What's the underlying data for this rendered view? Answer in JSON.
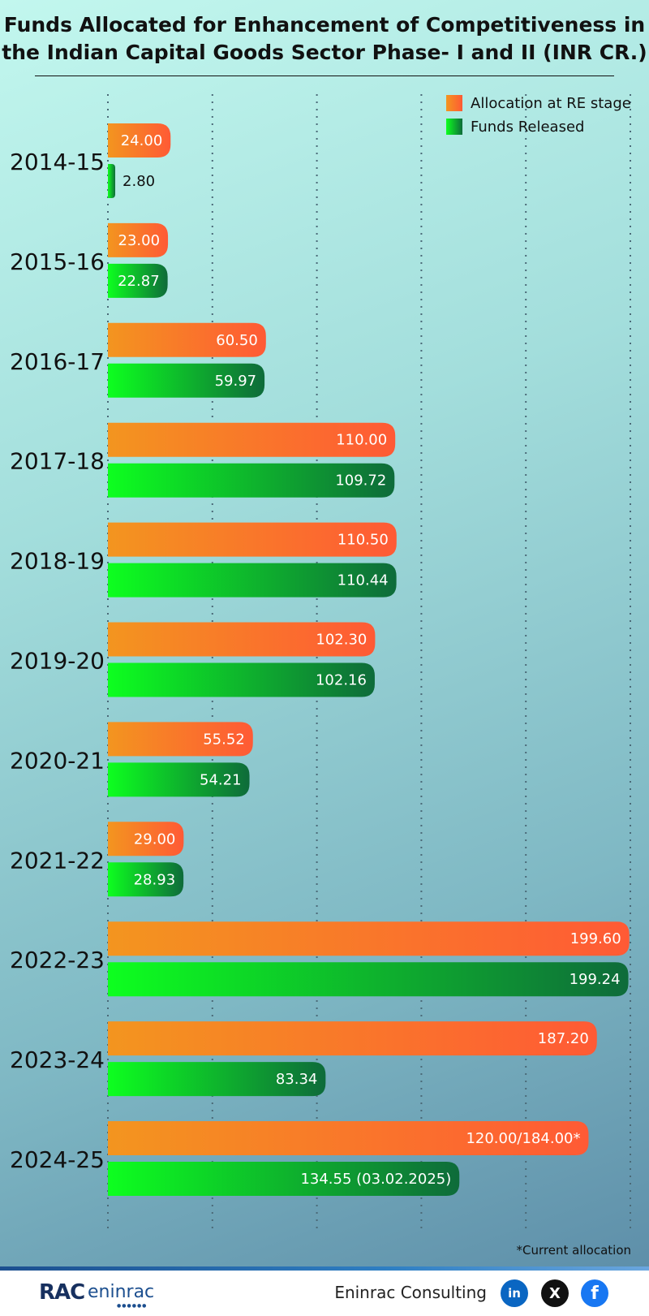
{
  "title": {
    "line1": "Funds Allocated for Enhancement of  Competitiveness in",
    "line2": "the Indian Capital Goods Sector Phase- I and II (INR CR.)"
  },
  "chart_data": {
    "type": "bar",
    "orientation": "horizontal",
    "title": "Funds Allocated for Enhancement of  Competitiveness in the Indian Capital Goods Sector Phase- I and II (INR CR.)",
    "categories": [
      "2014-15",
      "2015-16",
      "2016-17",
      "2017-18",
      "2018-19",
      "2019-20",
      "2020-21",
      "2021-22",
      "2022-23",
      "2023-24",
      "2024-25"
    ],
    "series": [
      {
        "name": "Allocation at RE stage",
        "values": [
          24.0,
          23.0,
          60.5,
          110.0,
          110.5,
          102.3,
          55.52,
          29.0,
          199.6,
          187.2,
          184.0
        ],
        "labels": [
          "24.00",
          "23.00",
          "60.50",
          "110.00",
          "110.50",
          "102.30",
          "55.52",
          "29.00",
          "199.60",
          "187.20",
          "120.00/184.00*"
        ],
        "color_start": "#f3951f",
        "color_end": "#ff5a35"
      },
      {
        "name": "Funds Released",
        "values": [
          2.8,
          22.87,
          59.97,
          109.72,
          110.44,
          102.16,
          54.21,
          28.93,
          199.24,
          83.34,
          134.55
        ],
        "labels": [
          "2.80",
          "22.87",
          "59.97",
          "109.72",
          "110.44",
          "102.16",
          "54.21",
          "28.93",
          "199.24",
          "83.34",
          "134.55 (03.02.2025)"
        ],
        "color_start": "#0dff1f",
        "color_end": "#0e6b3a"
      }
    ],
    "xlim": [
      0,
      200
    ],
    "gridlines": [
      0,
      40,
      80,
      120,
      160,
      200
    ],
    "grid": true,
    "grid_style": "dotted vertical",
    "legend_position": "top-right",
    "footnote": "*Current allocation"
  },
  "footer": {
    "brand": "Eninrac Consulting",
    "logo_mark": "RAC",
    "logo_text": "eninrac",
    "social_linkedin": "in",
    "social_x": "X",
    "social_facebook": "f"
  }
}
